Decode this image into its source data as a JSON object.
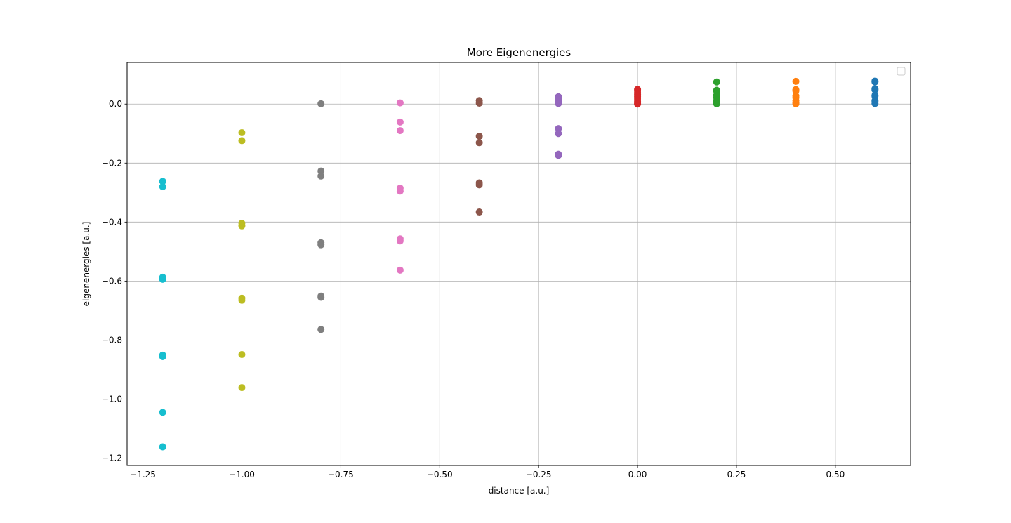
{
  "chart_data": {
    "type": "scatter",
    "title": "More Eigenenergies",
    "xlabel": "distance [a.u.]",
    "ylabel": "eigenenergies [a.u.]",
    "xlim": [
      -1.29,
      0.69
    ],
    "ylim": [
      -1.225,
      0.141
    ],
    "grid": true,
    "legend": "upper right, empty",
    "x_ticks": [
      {
        "value": -1.25,
        "label": "−1.25"
      },
      {
        "value": -1.0,
        "label": "−1.00"
      },
      {
        "value": -0.75,
        "label": "−0.75"
      },
      {
        "value": -0.5,
        "label": "−0.50"
      },
      {
        "value": -0.25,
        "label": "−0.25"
      },
      {
        "value": 0.0,
        "label": "0.00"
      },
      {
        "value": 0.25,
        "label": "0.25"
      },
      {
        "value": 0.5,
        "label": "0.50"
      }
    ],
    "y_ticks": [
      {
        "value": 0.0,
        "label": "0.0"
      },
      {
        "value": -0.2,
        "label": "−0.2"
      },
      {
        "value": -0.4,
        "label": "−0.4"
      },
      {
        "value": -0.6,
        "label": "−0.6"
      },
      {
        "value": -0.8,
        "label": "−0.8"
      },
      {
        "value": -1.0,
        "label": "−1.0"
      },
      {
        "value": -1.2,
        "label": "−1.2"
      }
    ],
    "series": [
      {
        "color": "#1f77b4",
        "x": 0.6,
        "y": [
          0.078,
          0.075,
          0.052,
          0.048,
          0.03,
          0.027,
          0.012,
          0.008,
          0.002
        ]
      },
      {
        "color": "#ff7f0e",
        "x": 0.4,
        "y": [
          0.077,
          0.049,
          0.045,
          0.028,
          0.022,
          0.012,
          0.005,
          0.001
        ]
      },
      {
        "color": "#2ca02c",
        "x": 0.2,
        "y": [
          0.075,
          0.047,
          0.044,
          0.03,
          0.022,
          0.012,
          0.006,
          0.001
        ]
      },
      {
        "color": "#d62728",
        "x": 0.0,
        "y": [
          0.05,
          0.045,
          0.038,
          0.032,
          0.026,
          0.02,
          0.014,
          0.008,
          0.003,
          0.0
        ]
      },
      {
        "color": "#9467bd",
        "x": -0.2,
        "y": [
          0.025,
          0.018,
          0.01,
          0.002,
          -0.083,
          -0.1,
          -0.17,
          -0.174
        ]
      },
      {
        "color": "#8c564b",
        "x": -0.4,
        "y": [
          0.012,
          0.003,
          -0.109,
          -0.131,
          -0.267,
          -0.274,
          -0.366
        ]
      },
      {
        "color": "#e377c2",
        "x": -0.6,
        "y": [
          0.004,
          -0.061,
          -0.09,
          -0.285,
          -0.295,
          -0.457,
          -0.464,
          -0.563
        ]
      },
      {
        "color": "#7f7f7f",
        "x": -0.8,
        "y": [
          0.001,
          -0.227,
          -0.244,
          -0.47,
          -0.477,
          -0.651,
          -0.655,
          -0.764
        ]
      },
      {
        "color": "#bcbd22",
        "x": -1.0,
        "y": [
          -0.097,
          -0.124,
          -0.404,
          -0.413,
          -0.658,
          -0.665,
          -0.849,
          -0.961
        ]
      },
      {
        "color": "#17becf",
        "x": -1.2,
        "y": [
          -0.262,
          -0.28,
          -0.587,
          -0.594,
          -0.851,
          -0.856,
          -1.045,
          -1.162
        ]
      }
    ]
  }
}
